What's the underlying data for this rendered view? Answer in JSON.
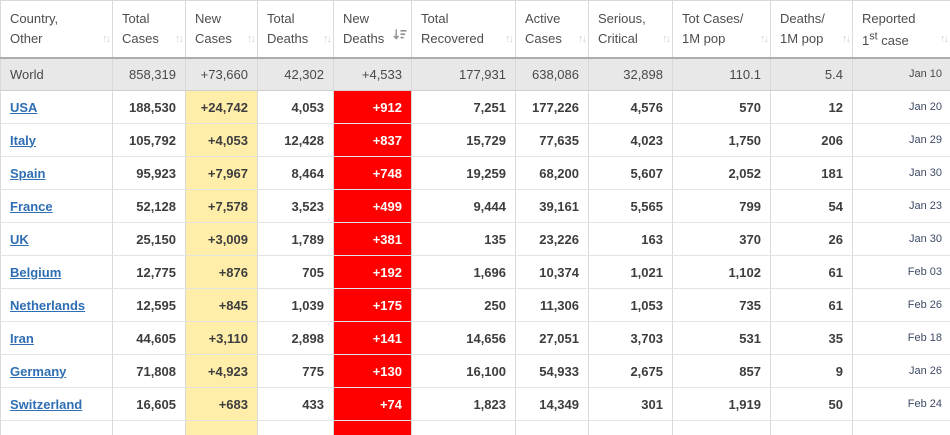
{
  "table": {
    "icons": {
      "sort_both": "↑↓"
    },
    "columns": [
      {
        "key": "name",
        "label": "Country, Other"
      },
      {
        "key": "total_cases",
        "label": "Total Cases"
      },
      {
        "key": "new_cases",
        "label": "New Cases"
      },
      {
        "key": "total_deaths",
        "label": "Total Deaths"
      },
      {
        "key": "new_deaths",
        "label": "New Deaths",
        "sorted_desc": true
      },
      {
        "key": "total_recovered",
        "label": "Total Recovered"
      },
      {
        "key": "active_cases",
        "label": "Active Cases"
      },
      {
        "key": "serious_critical",
        "label": "Serious, Critical"
      },
      {
        "key": "cases_per_1m",
        "label": "Tot Cases/ 1M pop"
      },
      {
        "key": "deaths_per_1m",
        "label": "Deaths/ 1M pop"
      },
      {
        "key": "first_case",
        "label": "Reported",
        "num": "1",
        "sup": "st",
        "rest": "case"
      }
    ],
    "colors": {
      "new_cases_highlight": "#ffeeaa",
      "new_deaths_highlight": "#ff0000",
      "world_row_bg": "#e8e8e8",
      "link_blue": "#2f6eb2"
    },
    "rows": [
      {
        "world": true,
        "name": "World",
        "total_cases": "858,319",
        "new_cases": "+73,660",
        "total_deaths": "42,302",
        "new_deaths": "+4,533",
        "total_recovered": "177,931",
        "active_cases": "638,086",
        "serious_critical": "32,898",
        "cases_per_1m": "110.1",
        "deaths_per_1m": "5.4",
        "first_case": "Jan 10"
      },
      {
        "name": "USA",
        "total_cases": "188,530",
        "new_cases": "+24,742",
        "total_deaths": "4,053",
        "new_deaths": "+912",
        "total_recovered": "7,251",
        "active_cases": "177,226",
        "serious_critical": "4,576",
        "cases_per_1m": "570",
        "deaths_per_1m": "12",
        "first_case": "Jan 20"
      },
      {
        "name": "Italy",
        "total_cases": "105,792",
        "new_cases": "+4,053",
        "total_deaths": "12,428",
        "new_deaths": "+837",
        "total_recovered": "15,729",
        "active_cases": "77,635",
        "serious_critical": "4,023",
        "cases_per_1m": "1,750",
        "deaths_per_1m": "206",
        "first_case": "Jan 29"
      },
      {
        "name": "Spain",
        "total_cases": "95,923",
        "new_cases": "+7,967",
        "total_deaths": "8,464",
        "new_deaths": "+748",
        "total_recovered": "19,259",
        "active_cases": "68,200",
        "serious_critical": "5,607",
        "cases_per_1m": "2,052",
        "deaths_per_1m": "181",
        "first_case": "Jan 30"
      },
      {
        "name": "France",
        "total_cases": "52,128",
        "new_cases": "+7,578",
        "total_deaths": "3,523",
        "new_deaths": "+499",
        "total_recovered": "9,444",
        "active_cases": "39,161",
        "serious_critical": "5,565",
        "cases_per_1m": "799",
        "deaths_per_1m": "54",
        "first_case": "Jan 23"
      },
      {
        "name": "UK",
        "total_cases": "25,150",
        "new_cases": "+3,009",
        "total_deaths": "1,789",
        "new_deaths": "+381",
        "total_recovered": "135",
        "active_cases": "23,226",
        "serious_critical": "163",
        "cases_per_1m": "370",
        "deaths_per_1m": "26",
        "first_case": "Jan 30"
      },
      {
        "name": "Belgium",
        "total_cases": "12,775",
        "new_cases": "+876",
        "total_deaths": "705",
        "new_deaths": "+192",
        "total_recovered": "1,696",
        "active_cases": "10,374",
        "serious_critical": "1,021",
        "cases_per_1m": "1,102",
        "deaths_per_1m": "61",
        "first_case": "Feb 03"
      },
      {
        "name": "Netherlands",
        "total_cases": "12,595",
        "new_cases": "+845",
        "total_deaths": "1,039",
        "new_deaths": "+175",
        "total_recovered": "250",
        "active_cases": "11,306",
        "serious_critical": "1,053",
        "cases_per_1m": "735",
        "deaths_per_1m": "61",
        "first_case": "Feb 26"
      },
      {
        "name": "Iran",
        "total_cases": "44,605",
        "new_cases": "+3,110",
        "total_deaths": "2,898",
        "new_deaths": "+141",
        "total_recovered": "14,656",
        "active_cases": "27,051",
        "serious_critical": "3,703",
        "cases_per_1m": "531",
        "deaths_per_1m": "35",
        "first_case": "Feb 18"
      },
      {
        "name": "Germany",
        "total_cases": "71,808",
        "new_cases": "+4,923",
        "total_deaths": "775",
        "new_deaths": "+130",
        "total_recovered": "16,100",
        "active_cases": "54,933",
        "serious_critical": "2,675",
        "cases_per_1m": "857",
        "deaths_per_1m": "9",
        "first_case": "Jan 26"
      },
      {
        "name": "Switzerland",
        "total_cases": "16,605",
        "new_cases": "+683",
        "total_deaths": "433",
        "new_deaths": "+74",
        "total_recovered": "1,823",
        "active_cases": "14,349",
        "serious_critical": "301",
        "cases_per_1m": "1,919",
        "deaths_per_1m": "50",
        "first_case": "Feb 24"
      },
      {
        "partial": true,
        "name": "",
        "total_cases": "",
        "new_cases": "",
        "total_deaths": "",
        "new_deaths": "",
        "total_recovered": "",
        "active_cases": "",
        "serious_critical": "",
        "cases_per_1m": "",
        "deaths_per_1m": "",
        "first_case": ""
      }
    ]
  }
}
